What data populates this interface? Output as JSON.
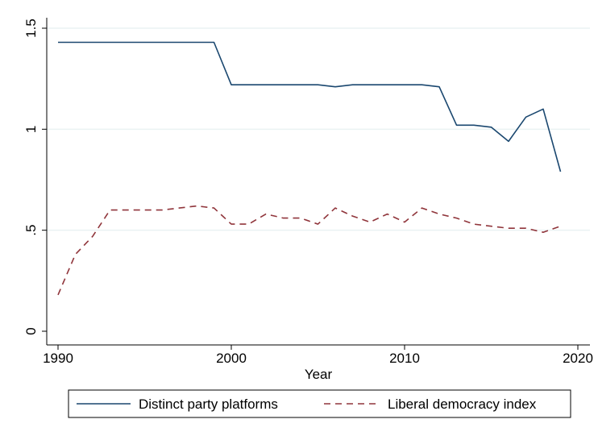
{
  "chart_data": {
    "type": "line",
    "title": "",
    "xlabel": "Year",
    "ylabel": "",
    "xlim": [
      1990,
      2020
    ],
    "ylim": [
      0,
      1.5
    ],
    "x_ticks": [
      1990,
      2000,
      2010,
      2020
    ],
    "x_tick_labels": [
      "1990",
      "2000",
      "2010",
      "2020"
    ],
    "y_ticks": [
      0,
      0.5,
      1,
      1.5
    ],
    "y_tick_labels": [
      "0",
      ".5",
      "1",
      "1.5"
    ],
    "grid": true,
    "legend": "bottom",
    "x": [
      1990,
      1991,
      1992,
      1993,
      1994,
      1995,
      1996,
      1997,
      1998,
      1999,
      2000,
      2001,
      2002,
      2003,
      2004,
      2005,
      2006,
      2007,
      2008,
      2009,
      2010,
      2011,
      2012,
      2013,
      2014,
      2015,
      2016,
      2017,
      2018,
      2019
    ],
    "series": [
      {
        "name": "Distinct party platforms",
        "color": "#1a476f",
        "line_style": "solid",
        "values": [
          1.43,
          1.43,
          1.43,
          1.43,
          1.43,
          1.43,
          1.43,
          1.43,
          1.43,
          1.43,
          1.22,
          1.22,
          1.22,
          1.22,
          1.22,
          1.22,
          1.21,
          1.22,
          1.22,
          1.22,
          1.22,
          1.22,
          1.21,
          1.02,
          1.02,
          1.01,
          0.94,
          1.06,
          1.1,
          0.79
        ]
      },
      {
        "name": "Liberal democracy index",
        "color": "#90353b",
        "line_style": "dashed",
        "values": [
          0.18,
          0.38,
          0.47,
          0.6,
          0.6,
          0.6,
          0.6,
          0.61,
          0.62,
          0.61,
          0.53,
          0.53,
          0.58,
          0.56,
          0.56,
          0.53,
          0.61,
          0.57,
          0.54,
          0.58,
          0.54,
          0.61,
          0.58,
          0.56,
          0.53,
          0.52,
          0.51,
          0.51,
          0.49,
          0.52
        ]
      }
    ]
  }
}
